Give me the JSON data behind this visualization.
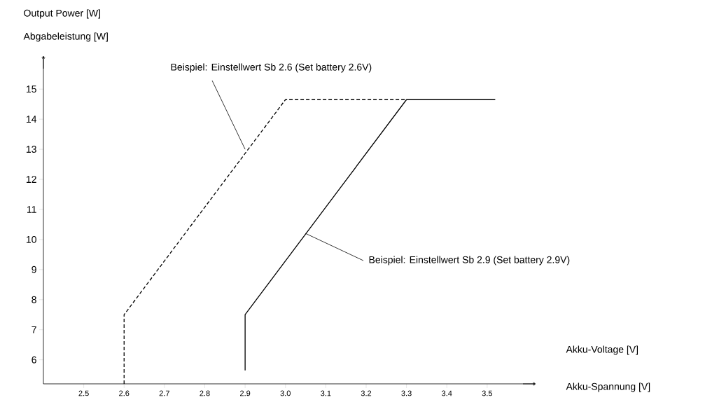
{
  "chart_data": {
    "type": "line",
    "ylabel": "Output Power [W]",
    "xlabel": "Akku-Voltage  [V]",
    "annotations": [
      "Abgabeleistung [W]",
      "Akku-Spannung [V]",
      {
        "text": "Beispiel: Einstellwert Sb 2.6 (Set battery 2.6V)",
        "x": 2.9,
        "y": 13
      },
      {
        "text": "Beispiel: Einstellwert Sb 2.9 (Set battery 2.9V)",
        "x": 3.05,
        "y": 10.2
      }
    ],
    "xlim": [
      2.4,
      3.62
    ],
    "ylim": [
      5.2,
      16.1
    ],
    "xticks": [
      2.5,
      2.6,
      2.7,
      2.8,
      2.9,
      {
        "value": 3.0,
        "label": "3.0"
      },
      3.1,
      3.2,
      3.3,
      3.4,
      3.5
    ],
    "yticks": [
      6,
      7,
      8,
      9,
      10,
      11,
      12,
      13,
      14,
      15
    ],
    "grid": false,
    "marker": "none",
    "series": [
      {
        "color": "#000000",
        "line_style": "dashed",
        "x": [
          2.6,
          2.6,
          3.0,
          3.3
        ],
        "values": [
          5.2,
          7.5,
          14.65,
          14.65
        ]
      },
      {
        "color": "#000000",
        "line_style": "solid",
        "x": [
          2.9,
          2.9,
          3.3,
          3.52
        ],
        "values": [
          5.65,
          7.5,
          14.65,
          14.65
        ]
      }
    ]
  }
}
